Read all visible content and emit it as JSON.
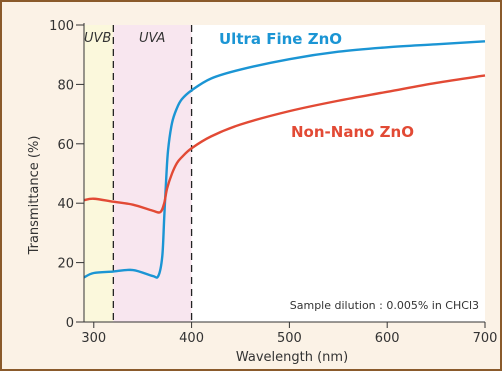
{
  "chart_data": {
    "type": "line",
    "xlabel": "Wavelength (nm)",
    "ylabel": "Transmittance (%)",
    "xlim": [
      290,
      700
    ],
    "ylim": [
      0,
      100
    ],
    "x_ticks": [
      "300",
      "400",
      "500",
      "600",
      "700"
    ],
    "y_ticks": [
      "0",
      "20",
      "40",
      "60",
      "80",
      "100"
    ],
    "regions": [
      {
        "label": "UVB",
        "x_range": [
          290,
          320
        ],
        "color": "#fbf8dc"
      },
      {
        "label": "UVA",
        "x_range": [
          320,
          400
        ],
        "color": "#f8e6ef"
      }
    ],
    "region_boundaries": [
      320,
      400
    ],
    "note": "Sample dilution : 0.005% in CHCl3",
    "series": [
      {
        "name": "Ultra Fine ZnO",
        "color": "#1b95d4",
        "x": [
          290,
          300,
          320,
          340,
          360,
          366,
          370,
          372,
          374,
          376,
          380,
          385,
          390,
          400,
          420,
          450,
          500,
          550,
          600,
          650,
          700
        ],
        "y": [
          15,
          16.5,
          17,
          17.5,
          15.5,
          15.5,
          22,
          35,
          48,
          58,
          67,
          72,
          75,
          78,
          82,
          85,
          88.5,
          91,
          92.5,
          93.5,
          94.5
        ]
      },
      {
        "name": "Non-Nano ZnO",
        "color": "#e24a35",
        "x": [
          290,
          300,
          320,
          340,
          360,
          368,
          372,
          375,
          380,
          385,
          390,
          400,
          420,
          450,
          500,
          550,
          600,
          650,
          700
        ],
        "y": [
          41,
          41.5,
          40.5,
          39.5,
          37.5,
          37,
          40,
          45,
          50,
          53.5,
          55.5,
          58.5,
          62.5,
          66.5,
          71,
          74.5,
          77.5,
          80.5,
          83
        ]
      }
    ]
  }
}
